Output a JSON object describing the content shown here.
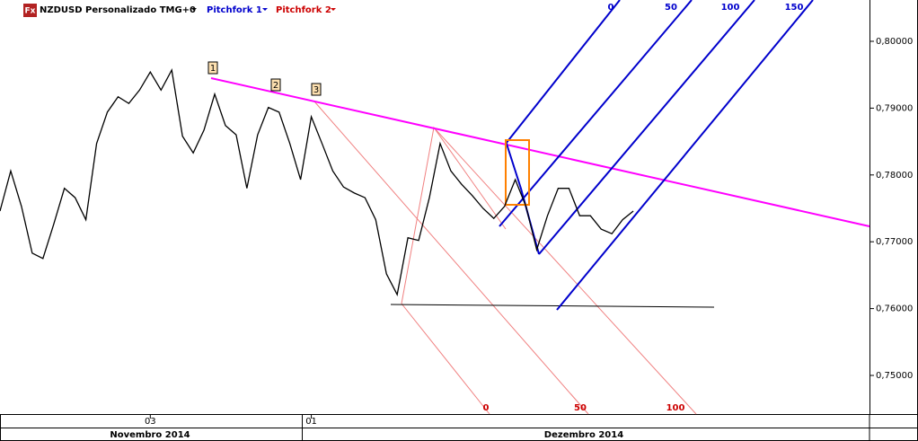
{
  "chart_data": {
    "type": "line",
    "title": "NZDUSD Personalizado TMG+0",
    "color": "#000000",
    "values": [
      0.7746,
      0.7806,
      0.7753,
      0.7683,
      0.7675,
      0.7726,
      0.778,
      0.7766,
      0.7733,
      0.7847,
      0.7894,
      0.7917,
      0.7907,
      0.7927,
      0.7954,
      0.7927,
      0.7957,
      0.7858,
      0.7833,
      0.7867,
      0.7921,
      0.7874,
      0.786,
      0.778,
      0.786,
      0.7901,
      0.7894,
      0.7847,
      0.7793,
      0.7887,
      0.7847,
      0.7806,
      0.7782,
      0.7773,
      0.7766,
      0.7733,
      0.7652,
      0.7621,
      0.7706,
      0.7702,
      0.7766,
      0.7847,
      0.7806,
      0.7786,
      0.7769,
      0.775,
      0.7735,
      0.7753,
      0.7793,
      0.7753,
      0.7688,
      0.7739,
      0.778,
      0.778,
      0.7739,
      0.7739,
      0.7719,
      0.7712,
      0.7733,
      0.7746
    ],
    "xlim": [
      0,
      81
    ],
    "xticks": [
      {
        "value": 14,
        "label": "03"
      },
      {
        "value": 29,
        "label": "01"
      }
    ],
    "ylim": [
      0.74422,
      0.80618
    ],
    "yticks": [
      {
        "value": 0.8,
        "label": "0,80000"
      },
      {
        "value": 0.79,
        "label": "0,79000"
      },
      {
        "value": 0.78,
        "label": "0,78000"
      },
      {
        "value": 0.77,
        "label": "0,77000"
      },
      {
        "value": 0.76,
        "label": "0,76000"
      },
      {
        "value": 0.75,
        "label": "0,75000"
      }
    ],
    "grid": false,
    "annotations": {
      "icon": "Fx",
      "pitchfork_1": "Pitchfork 1",
      "pitchfork_2": "Pitchfork 2",
      "pitchfork_1_levels": [
        "0",
        "50",
        "100",
        "150"
      ],
      "pitchfork_2_levels": [
        "0",
        "50",
        "100"
      ],
      "points": [
        "1",
        "2",
        "3"
      ],
      "months": [
        "Novembro 2014",
        "Dezembro 2014"
      ]
    }
  }
}
